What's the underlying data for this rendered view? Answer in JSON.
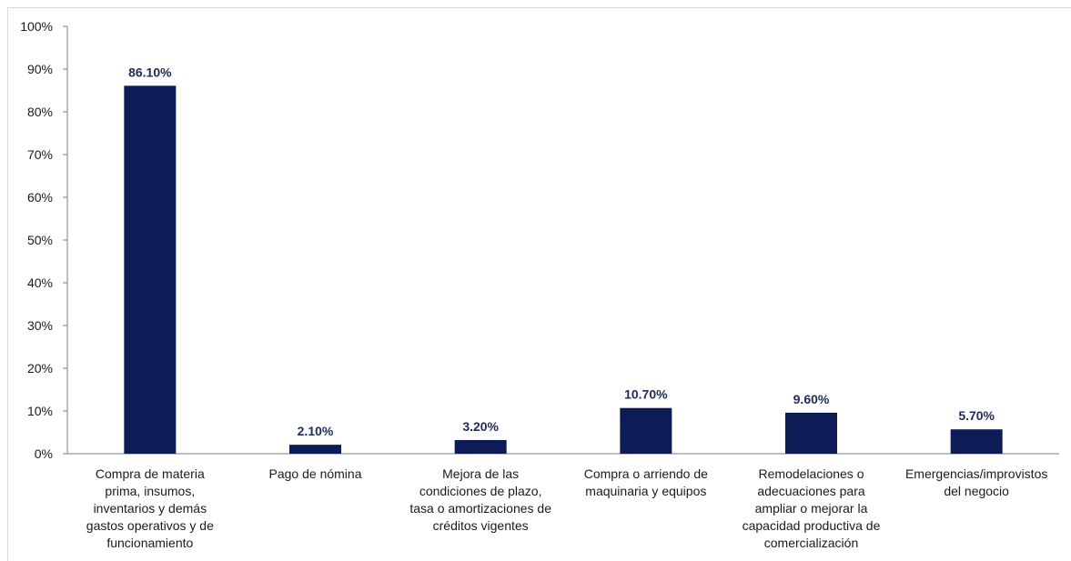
{
  "chart_data": {
    "type": "bar",
    "categories": [
      [
        "Compra de materia",
        "prima, insumos,",
        "inventarios y demás",
        "gastos operativos y de",
        "funcionamiento"
      ],
      [
        "Pago de nómina"
      ],
      [
        "Mejora de las",
        "condiciones de plazo,",
        "tasa o amortizaciones de",
        "créditos vigentes"
      ],
      [
        "Compra o arriendo de",
        "maquinaria y equipos"
      ],
      [
        "Remodelaciones o",
        "adecuaciones para",
        "ampliar o mejorar la",
        "capacidad productiva de",
        "comercialización"
      ],
      [
        "Emergencias/improvistos",
        "del negocio"
      ]
    ],
    "values": [
      86.1,
      2.1,
      3.2,
      10.7,
      9.6,
      5.7
    ],
    "data_labels": [
      "86.10%",
      "2.10%",
      "3.20%",
      "10.70%",
      "9.60%",
      "5.70%"
    ],
    "y_ticks": [
      "0%",
      "10%",
      "20%",
      "30%",
      "40%",
      "50%",
      "60%",
      "70%",
      "80%",
      "90%",
      "100%"
    ],
    "ylim": [
      0,
      100
    ],
    "grid": false,
    "bar_color": "#0d1b57",
    "label_color": "#1f2a5a"
  }
}
